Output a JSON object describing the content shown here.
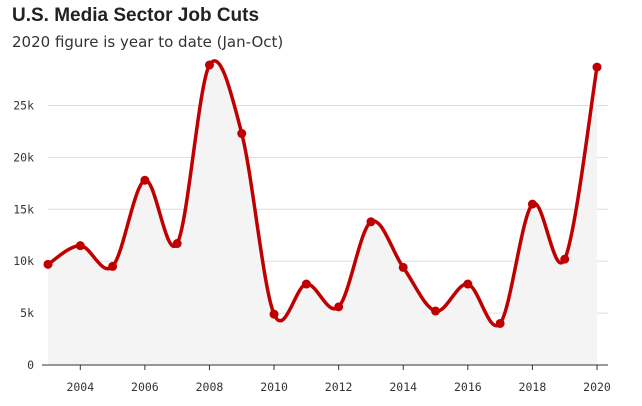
{
  "chart_data": {
    "type": "line",
    "title": "U.S. Media Sector Job Cuts",
    "subtitle": "2020 figure is year to date (Jan-Oct)",
    "xlabel": "",
    "ylabel": "",
    "x": [
      2003,
      2004,
      2005,
      2006,
      2007,
      2008,
      2009,
      2010,
      2011,
      2012,
      2013,
      2014,
      2015,
      2016,
      2017,
      2018,
      2019,
      2020
    ],
    "values": [
      9700,
      11500,
      9500,
      17800,
      11700,
      28900,
      22300,
      4900,
      7800,
      5600,
      13800,
      9400,
      5200,
      7800,
      4000,
      15500,
      10200,
      28700
    ],
    "xlim": [
      2003,
      2020
    ],
    "ylim": [
      0,
      29000
    ],
    "x_ticks": [
      "2004",
      "2006",
      "2008",
      "2010",
      "2012",
      "2014",
      "2016",
      "2018",
      "2020"
    ],
    "y_ticks": [
      "0",
      "5k",
      "10k",
      "15k",
      "20k",
      "25k"
    ],
    "grid": true,
    "colors": {
      "line": "#c00000",
      "area": "#f4f4f4",
      "grid": "#dddddd"
    }
  }
}
